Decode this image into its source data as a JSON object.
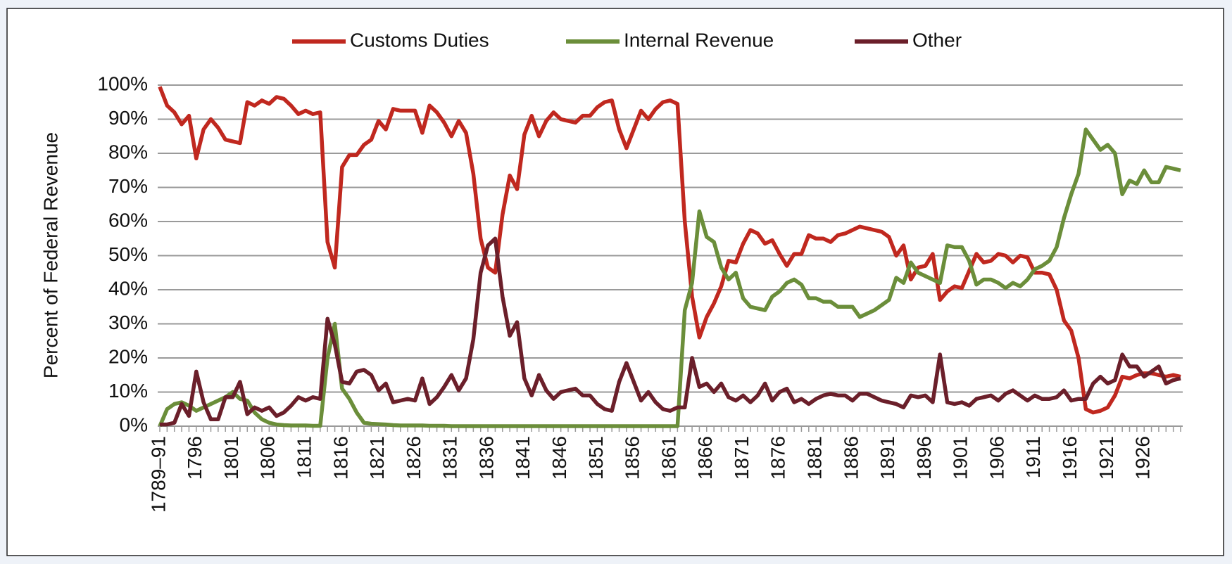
{
  "chart_data": {
    "type": "line",
    "ylabel": "Percent of Federal Revenue",
    "categories": [
      "1789–91",
      null,
      null,
      null,
      null,
      "1796",
      null,
      null,
      null,
      null,
      "1801",
      null,
      null,
      null,
      null,
      "1806",
      null,
      null,
      null,
      null,
      "1811",
      null,
      null,
      null,
      null,
      "1816",
      null,
      null,
      null,
      null,
      "1821",
      null,
      null,
      null,
      null,
      "1826",
      null,
      null,
      null,
      null,
      "1831",
      null,
      null,
      null,
      null,
      "1836",
      null,
      null,
      null,
      null,
      "1841",
      null,
      null,
      null,
      null,
      "1846",
      null,
      null,
      null,
      null,
      "1851",
      null,
      null,
      null,
      null,
      "1856",
      null,
      null,
      null,
      null,
      "1861",
      null,
      null,
      null,
      null,
      "1866",
      null,
      null,
      null,
      null,
      "1871",
      null,
      null,
      null,
      null,
      "1876",
      null,
      null,
      null,
      null,
      "1881",
      null,
      null,
      null,
      null,
      "1886",
      null,
      null,
      null,
      null,
      "1891",
      null,
      null,
      null,
      null,
      "1896",
      null,
      null,
      null,
      null,
      "1901",
      null,
      null,
      null,
      null,
      "1906",
      null,
      null,
      null,
      null,
      "1911",
      null,
      null,
      null,
      null,
      "1916",
      null,
      null,
      null,
      null,
      "1921",
      null,
      null,
      null,
      null,
      "1926",
      null,
      null,
      null,
      null,
      null
    ],
    "series": [
      {
        "name": "Customs Duties",
        "color": "#c0281f",
        "values": [
          99.5,
          94,
          92,
          88.5,
          91,
          78.5,
          87,
          90,
          87.5,
          84,
          83.5,
          83,
          95,
          94,
          95.5,
          94.5,
          96.5,
          96,
          94,
          91.5,
          92.5,
          91.5,
          92,
          54,
          46.5,
          76,
          79.5,
          79.5,
          82.5,
          84,
          89.5,
          87,
          93,
          92.5,
          92.5,
          92.5,
          86,
          94,
          92,
          89,
          85,
          89.5,
          86,
          74,
          55,
          46.5,
          45,
          62,
          73.5,
          69.5,
          85.5,
          91,
          85,
          89.5,
          92,
          90,
          89.5,
          89,
          91,
          91,
          93.5,
          95,
          95.5,
          87,
          81.5,
          87,
          92.5,
          90,
          93,
          95,
          95.5,
          94.5,
          60,
          38,
          26,
          32,
          36,
          41,
          48.5,
          48,
          53.5,
          57.5,
          56.5,
          53.5,
          54.5,
          50.5,
          47,
          50.5,
          50.5,
          56,
          55,
          55,
          54,
          56,
          56.5,
          57.5,
          58.5,
          58,
          57.5,
          57,
          55.5,
          50,
          53,
          43,
          46.5,
          47,
          50.5,
          37,
          39.5,
          41,
          40.5,
          45.5,
          50.5,
          48,
          48.5,
          50.5,
          50,
          48,
          50,
          49.5,
          45,
          45,
          44.5,
          40,
          31,
          28,
          20,
          5,
          4,
          4.5,
          5.5,
          9,
          14.5,
          14,
          15,
          15.5,
          15.5,
          15,
          14.5,
          15,
          14.5
        ]
      },
      {
        "name": "Internal Revenue",
        "color": "#6b8e3a",
        "values": [
          0,
          5,
          6.5,
          7,
          6,
          4.5,
          5.5,
          6.5,
          7.5,
          8.5,
          10,
          8,
          7.5,
          4,
          2,
          1,
          0.5,
          0.3,
          0.2,
          0.2,
          0.2,
          0.1,
          0.1,
          20,
          30,
          11,
          8,
          4,
          1,
          0.7,
          0.6,
          0.5,
          0.3,
          0.2,
          0.2,
          0.2,
          0.2,
          0.1,
          0.1,
          0.1,
          0,
          0,
          0,
          0,
          0,
          0,
          0,
          0,
          0,
          0,
          0,
          0,
          0,
          0,
          0,
          0,
          0,
          0,
          0,
          0,
          0,
          0,
          0,
          0,
          0,
          0,
          0,
          0,
          0,
          0,
          0,
          0,
          34,
          42,
          63,
          55.5,
          54,
          46.5,
          43,
          45,
          37.5,
          35,
          34.5,
          34,
          38,
          39.5,
          42,
          43,
          41.5,
          37.5,
          37.5,
          36.5,
          36.5,
          35,
          35,
          35,
          32,
          33,
          34,
          35.5,
          37,
          43.5,
          42,
          48,
          45,
          44,
          43,
          42,
          53,
          52.5,
          52.5,
          48.5,
          41.5,
          43,
          43,
          42,
          40.5,
          42,
          41,
          43,
          46,
          47,
          48.5,
          52.5,
          61,
          68,
          74,
          87,
          84,
          81,
          82.5,
          80,
          68,
          72,
          71,
          75,
          71.5,
          71.5,
          76,
          75.5,
          75
        ]
      },
      {
        "name": "Other",
        "color": "#6b1f2a",
        "values": [
          0.5,
          0.5,
          1,
          6.5,
          3,
          16,
          7,
          2,
          2,
          8.5,
          8.5,
          13,
          3.5,
          5.5,
          4.5,
          5.5,
          3,
          4,
          6,
          8.5,
          7.5,
          8.5,
          8,
          31.5,
          24,
          13,
          12.5,
          16,
          16.5,
          15,
          10.5,
          12.5,
          7,
          7.5,
          8,
          7.5,
          14,
          6.5,
          8.5,
          11.5,
          15,
          10.5,
          14,
          25.5,
          45,
          53,
          55,
          38,
          26.5,
          30.5,
          14,
          9,
          15,
          10.5,
          8,
          10,
          10.5,
          11,
          9,
          9,
          6.5,
          5,
          4.5,
          13,
          18.5,
          13,
          7.5,
          10,
          7,
          5,
          4.5,
          5.5,
          5.5,
          20,
          11.5,
          12.5,
          10,
          12.5,
          8.5,
          7.5,
          9,
          7,
          9,
          12.5,
          7.5,
          10,
          11,
          7,
          8,
          6.5,
          8,
          9,
          9.5,
          9,
          9,
          7.5,
          9.5,
          9.5,
          8.5,
          7.5,
          7,
          6.5,
          5.5,
          9,
          8.5,
          9,
          7,
          21,
          7,
          6.5,
          7,
          6,
          8,
          8.5,
          9,
          7.5,
          9.5,
          10.5,
          9,
          7.5,
          9,
          8,
          8,
          8.5,
          10.5,
          7.5,
          8,
          8,
          12.5,
          14.5,
          12.5,
          13.5,
          21,
          17.5,
          17.5,
          14.5,
          16,
          17.5,
          12.5,
          13.5,
          14
        ]
      }
    ],
    "ylim": [
      0,
      100
    ],
    "yticks": [
      {
        "value": 0,
        "label": "0%"
      },
      {
        "value": 10,
        "label": "10%"
      },
      {
        "value": 20,
        "label": "20%"
      },
      {
        "value": 30,
        "label": "30%"
      },
      {
        "value": 40,
        "label": "40%"
      },
      {
        "value": 50,
        "label": "50%"
      },
      {
        "value": 60,
        "label": "60%"
      },
      {
        "value": 70,
        "label": "70%"
      },
      {
        "value": 80,
        "label": "80%"
      },
      {
        "value": 90,
        "label": "90%"
      },
      {
        "value": 100,
        "label": "100%"
      }
    ],
    "grid": true,
    "legend": "top"
  }
}
